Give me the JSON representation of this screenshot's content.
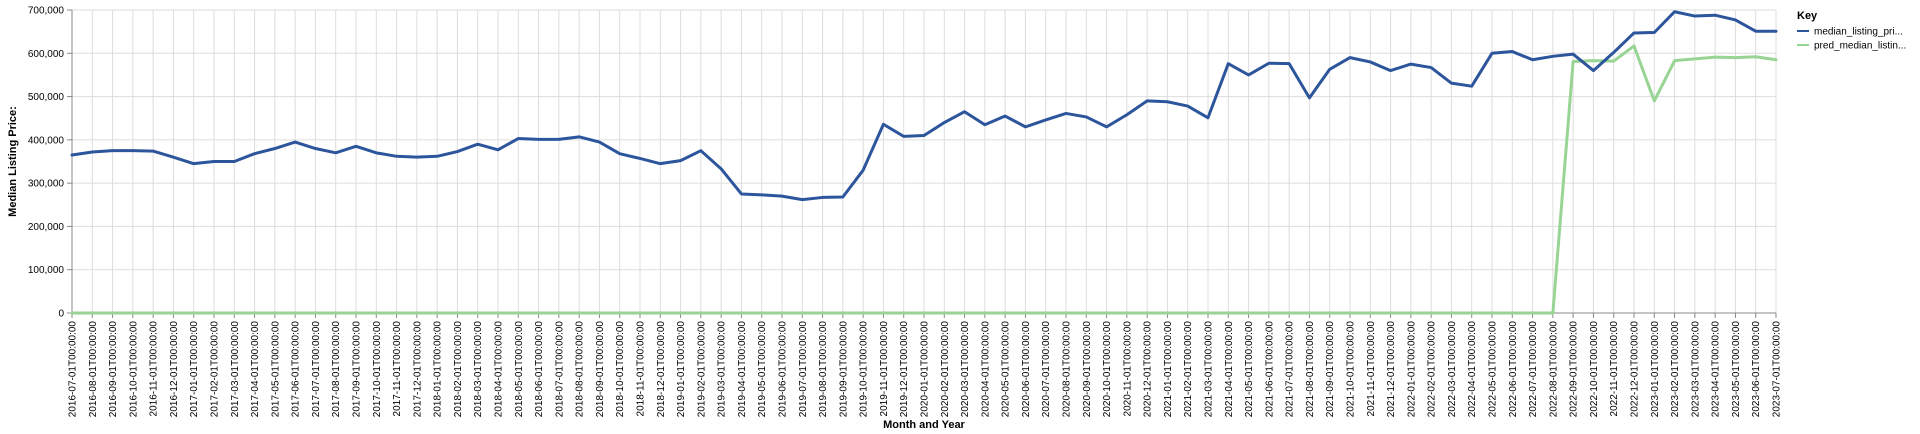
{
  "chart_data": {
    "type": "line",
    "xlabel": "Month and Year",
    "ylabel": "Median Listing Price:",
    "ylim": [
      0,
      700000
    ],
    "yticks": [
      "0",
      "100,000",
      "200,000",
      "300,000",
      "400,000",
      "500,000",
      "600,000",
      "700,000"
    ],
    "grid": true,
    "legend": {
      "title": "Key",
      "placement": "top-right"
    },
    "x": [
      "2016-07-01T00:00:00",
      "2016-08-01T00:00:00",
      "2016-09-01T00:00:00",
      "2016-10-01T00:00:00",
      "2016-11-01T00:00:00",
      "2016-12-01T00:00:00",
      "2017-01-01T00:00:00",
      "2017-02-01T00:00:00",
      "2017-03-01T00:00:00",
      "2017-04-01T00:00:00",
      "2017-05-01T00:00:00",
      "2017-06-01T00:00:00",
      "2017-07-01T00:00:00",
      "2017-08-01T00:00:00",
      "2017-09-01T00:00:00",
      "2017-10-01T00:00:00",
      "2017-11-01T00:00:00",
      "2017-12-01T00:00:00",
      "2018-01-01T00:00:00",
      "2018-02-01T00:00:00",
      "2018-03-01T00:00:00",
      "2018-04-01T00:00:00",
      "2018-05-01T00:00:00",
      "2018-06-01T00:00:00",
      "2018-07-01T00:00:00",
      "2018-08-01T00:00:00",
      "2018-09-01T00:00:00",
      "2018-10-01T00:00:00",
      "2018-11-01T00:00:00",
      "2018-12-01T00:00:00",
      "2019-01-01T00:00:00",
      "2019-02-01T00:00:00",
      "2019-03-01T00:00:00",
      "2019-04-01T00:00:00",
      "2019-05-01T00:00:00",
      "2019-06-01T00:00:00",
      "2019-07-01T00:00:00",
      "2019-08-01T00:00:00",
      "2019-09-01T00:00:00",
      "2019-10-01T00:00:00",
      "2019-11-01T00:00:00",
      "2019-12-01T00:00:00",
      "2020-01-01T00:00:00",
      "2020-02-01T00:00:00",
      "2020-03-01T00:00:00",
      "2020-04-01T00:00:00",
      "2020-05-01T00:00:00",
      "2020-06-01T00:00:00",
      "2020-07-01T00:00:00",
      "2020-08-01T00:00:00",
      "2020-09-01T00:00:00",
      "2020-10-01T00:00:00",
      "2020-11-01T00:00:00",
      "2020-12-01T00:00:00",
      "2021-01-01T00:00:00",
      "2021-02-01T00:00:00",
      "2021-03-01T00:00:00",
      "2021-04-01T00:00:00",
      "2021-05-01T00:00:00",
      "2021-06-01T00:00:00",
      "2021-07-01T00:00:00",
      "2021-08-01T00:00:00",
      "2021-09-01T00:00:00",
      "2021-10-01T00:00:00",
      "2021-11-01T00:00:00",
      "2021-12-01T00:00:00",
      "2022-01-01T00:00:00",
      "2022-02-01T00:00:00",
      "2022-03-01T00:00:00",
      "2022-04-01T00:00:00",
      "2022-05-01T00:00:00",
      "2022-06-01T00:00:00",
      "2022-07-01T00:00:00",
      "2022-08-01T00:00:00",
      "2022-09-01T00:00:00",
      "2022-10-01T00:00:00",
      "2022-11-01T00:00:00",
      "2022-12-01T00:00:00",
      "2023-01-01T00:00:00",
      "2023-02-01T00:00:00",
      "2023-03-01T00:00:00",
      "2023-04-01T00:00:00",
      "2023-05-01T00:00:00",
      "2023-06-01T00:00:00",
      "2023-07-01T00:00:00"
    ],
    "series": [
      {
        "name": "median_listing_pri...",
        "color": "#2c559c",
        "values": [
          365000,
          372000,
          375000,
          375000,
          374000,
          360000,
          345000,
          350000,
          350000,
          368000,
          380000,
          395000,
          380000,
          370000,
          385000,
          370000,
          362000,
          360000,
          362000,
          373000,
          390000,
          377000,
          403000,
          401000,
          401000,
          407000,
          395000,
          368000,
          357000,
          345000,
          352000,
          375000,
          333000,
          275000,
          273000,
          270000,
          262000,
          267000,
          268000,
          330000,
          436000,
          408000,
          410000,
          440000,
          465000,
          435000,
          455000,
          430000,
          446000,
          461000,
          453000,
          430000,
          458000,
          490000,
          488000,
          478000,
          451000,
          576000,
          550000,
          577000,
          576000,
          497000,
          563000,
          590000,
          580000,
          560000,
          575000,
          567000,
          531000,
          524000,
          600000,
          604000,
          585000,
          593000,
          598000,
          560000,
          602000,
          647000,
          648000,
          696000,
          686000,
          688000,
          677000,
          651000,
          651000
        ]
      },
      {
        "name": "pred_median_listin...",
        "color": "#98d594",
        "values": [
          0,
          0,
          0,
          0,
          0,
          0,
          0,
          0,
          0,
          0,
          0,
          0,
          0,
          0,
          0,
          0,
          0,
          0,
          0,
          0,
          0,
          0,
          0,
          0,
          0,
          0,
          0,
          0,
          0,
          0,
          0,
          0,
          0,
          0,
          0,
          0,
          0,
          0,
          0,
          0,
          0,
          0,
          0,
          0,
          0,
          0,
          0,
          0,
          0,
          0,
          0,
          0,
          0,
          0,
          0,
          0,
          0,
          0,
          0,
          0,
          0,
          0,
          0,
          0,
          0,
          0,
          0,
          0,
          0,
          0,
          0,
          0,
          0,
          0,
          581000,
          583000,
          582000,
          617000,
          490000,
          583000,
          587000,
          591000,
          590000,
          592000,
          585000
        ]
      }
    ]
  }
}
